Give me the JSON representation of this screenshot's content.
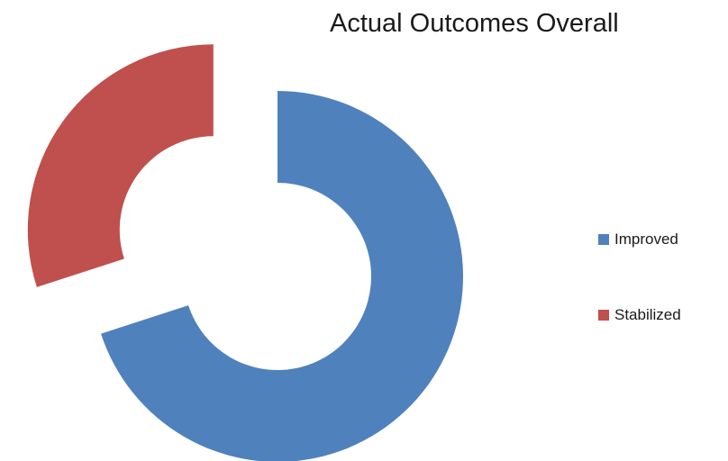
{
  "chart_data": {
    "type": "pie",
    "variant": "doughnut",
    "title": "Actual Outcomes Overall",
    "legend_position": "right",
    "series": [
      {
        "categories": [
          "Improved",
          "Stabilized"
        ],
        "values": [
          70,
          30
        ],
        "colors": [
          "#4f81bd",
          "#c0504d"
        ]
      }
    ],
    "exploded": true
  }
}
